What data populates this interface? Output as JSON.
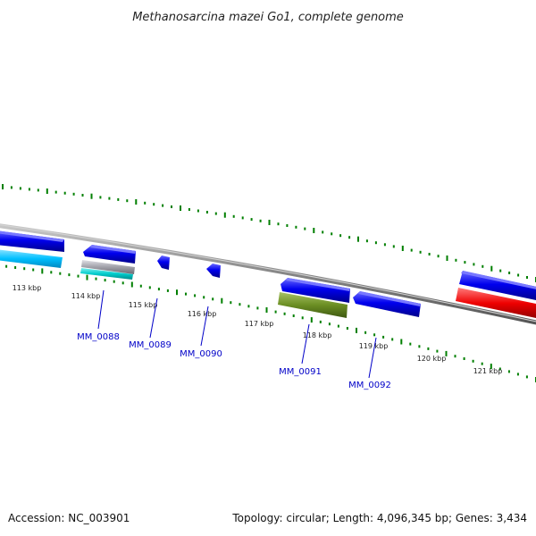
{
  "title": "Methanosarcina mazei Go1, complete genome",
  "footer": {
    "accession": "Accession: NC_003901",
    "summary": "Topology: circular; Length: 4,096,345 bp; Genes: 3,434"
  },
  "kbp_ticks": [
    "113 kbp",
    "114 kbp",
    "115 kbp",
    "116 kbp",
    "117 kbp",
    "118 kbp",
    "119 kbp",
    "120 kbp",
    "121 kbp"
  ],
  "genes": [
    "MM_0088",
    "MM_0089",
    "MM_0090",
    "MM_0091",
    "MM_0092"
  ],
  "colors": {
    "backbone": "#858585",
    "forward_cds": "#0000ee",
    "forward_cds_alt": "#1010f0",
    "light_blue_feature": "#00bfff",
    "grey_feature": "#a0a0a8",
    "cyan_feature": "#00cccc",
    "olive_feature": "#6b8e23",
    "red_feature": "#ee0000",
    "tick_green": "#007f00",
    "gene_label": "#0000c8"
  }
}
